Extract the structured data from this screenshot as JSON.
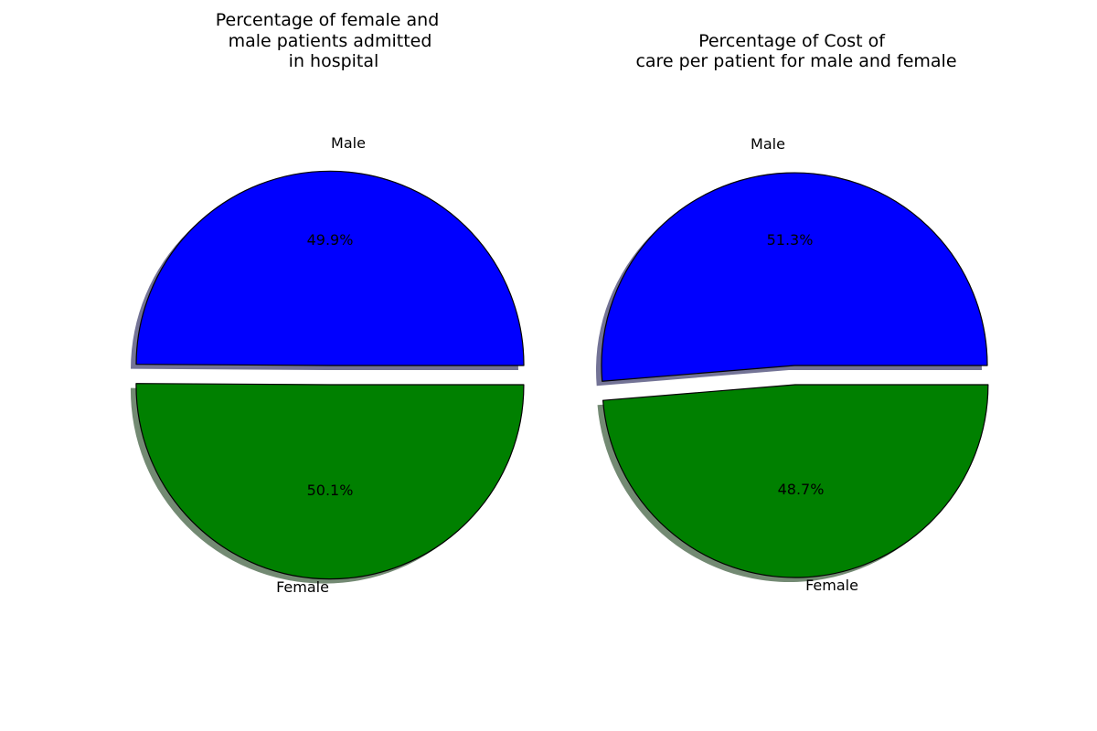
{
  "chart_data": [
    {
      "type": "pie",
      "title_lines": [
        "Percentage of female and",
        "male patients admitted",
        "in hospital"
      ],
      "categories": [
        "Male",
        "Female"
      ],
      "values": [
        49.9,
        50.1
      ],
      "percent_labels": [
        "49.9%",
        "50.1%"
      ],
      "colors": [
        "#0000ff",
        "#008000"
      ],
      "shadow": true,
      "exploded": [
        "Female"
      ],
      "start_angle_deg": 0,
      "direction": "counterclockwise",
      "legend": "none"
    },
    {
      "type": "pie",
      "title_lines": [
        "Percentage of Cost of",
        "care per patient for male and female"
      ],
      "categories": [
        "Male",
        "Female"
      ],
      "values": [
        51.3,
        48.7
      ],
      "percent_labels": [
        "51.3%",
        "48.7%"
      ],
      "colors": [
        "#0000ff",
        "#008000"
      ],
      "shadow": true,
      "exploded": [
        "Female"
      ],
      "start_angle_deg": 0,
      "direction": "counterclockwise",
      "legend": "none"
    }
  ]
}
